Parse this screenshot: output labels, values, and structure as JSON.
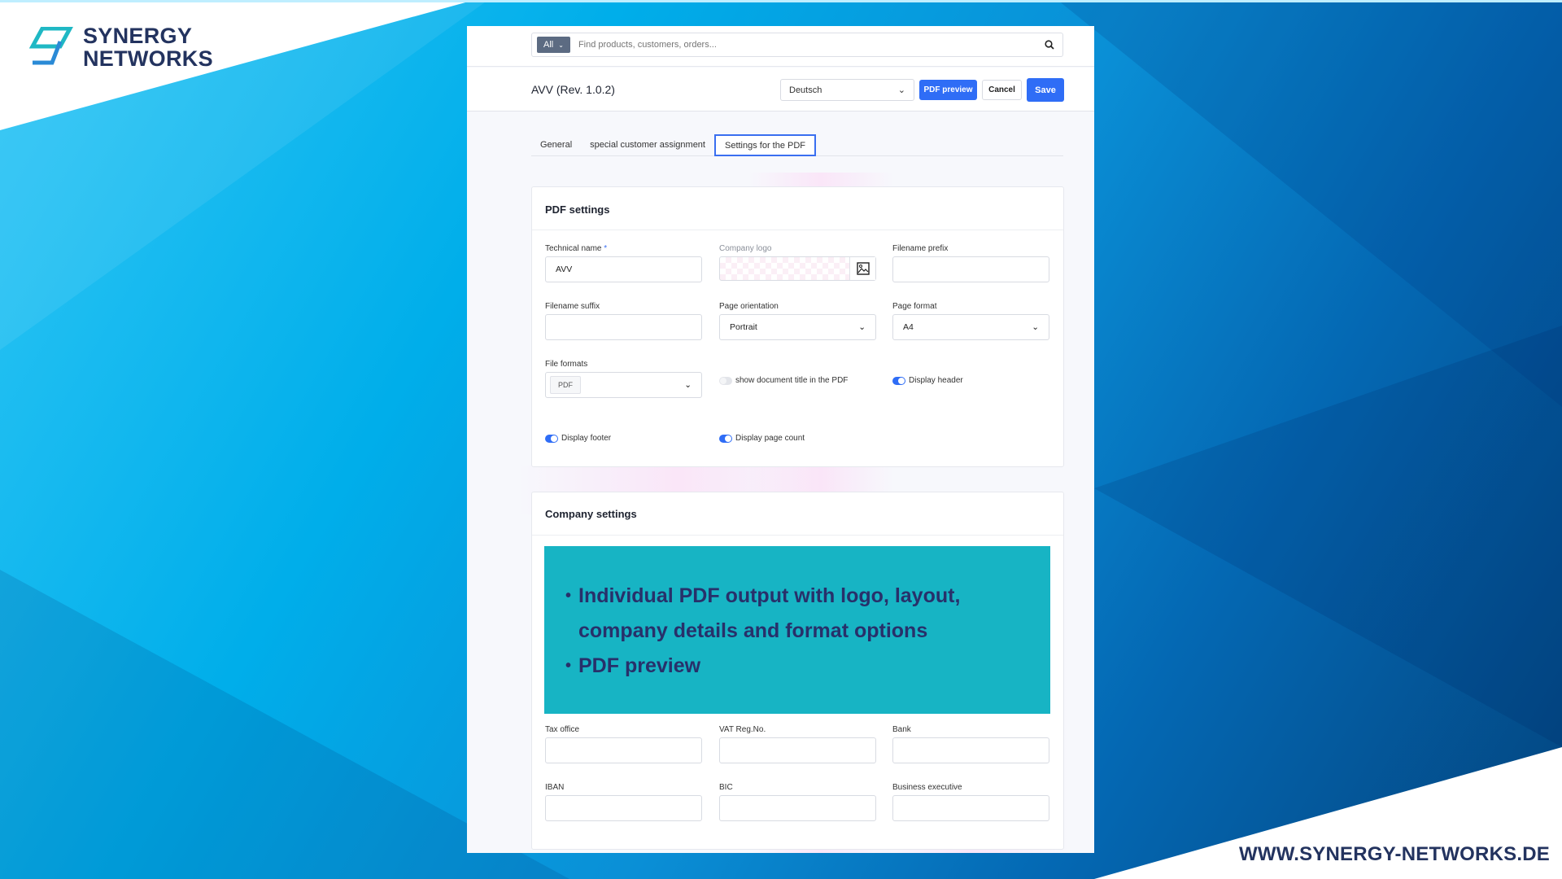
{
  "brand": {
    "name_line1": "SYNERGY",
    "name_line2": "NETWORKS",
    "website": "WWW.SYNERGY-NETWORKS.DE",
    "colors": {
      "navy": "#23335f",
      "teal": "#17b4c4",
      "accent": "#2f6df6"
    }
  },
  "search": {
    "scope": "All",
    "placeholder": "Find products, customers, orders...",
    "icon": "search-icon"
  },
  "header": {
    "title": "AVV (Rev. 1.0.2)",
    "language": "Deutsch",
    "pdf_preview": "PDF preview",
    "cancel": "Cancel",
    "save": "Save"
  },
  "tabs": [
    {
      "label": "General"
    },
    {
      "label": "special customer assignment"
    },
    {
      "label": "Settings for the PDF",
      "active": true
    }
  ],
  "pdf_settings": {
    "title": "PDF settings",
    "technical_name": {
      "label": "Technical name",
      "required": "*",
      "value": "AVV"
    },
    "company_logo": {
      "label": "Company logo",
      "icon": "image-icon"
    },
    "filename_prefix": {
      "label": "Filename prefix",
      "value": ""
    },
    "filename_suffix": {
      "label": "Filename suffix",
      "value": ""
    },
    "page_orientation": {
      "label": "Page orientation",
      "value": "Portrait"
    },
    "page_format": {
      "label": "Page format",
      "value": "A4"
    },
    "file_formats": {
      "label": "File formats",
      "value": "PDF"
    },
    "toggles": {
      "show_title": {
        "label": "show document title in the PDF",
        "on": false
      },
      "display_header": {
        "label": "Display header",
        "on": true
      },
      "display_footer": {
        "label": "Display footer",
        "on": true
      },
      "display_page_count": {
        "label": "Display page count",
        "on": true
      }
    }
  },
  "company_settings": {
    "title": "Company settings",
    "bullets": [
      "Individual PDF output with logo, layout, company details and format options",
      "PDF preview"
    ],
    "fields": [
      {
        "label": "Tax office"
      },
      {
        "label": "VAT Reg.No."
      },
      {
        "label": "Bank"
      },
      {
        "label": "IBAN"
      },
      {
        "label": "BIC"
      },
      {
        "label": "Business executive"
      }
    ]
  }
}
